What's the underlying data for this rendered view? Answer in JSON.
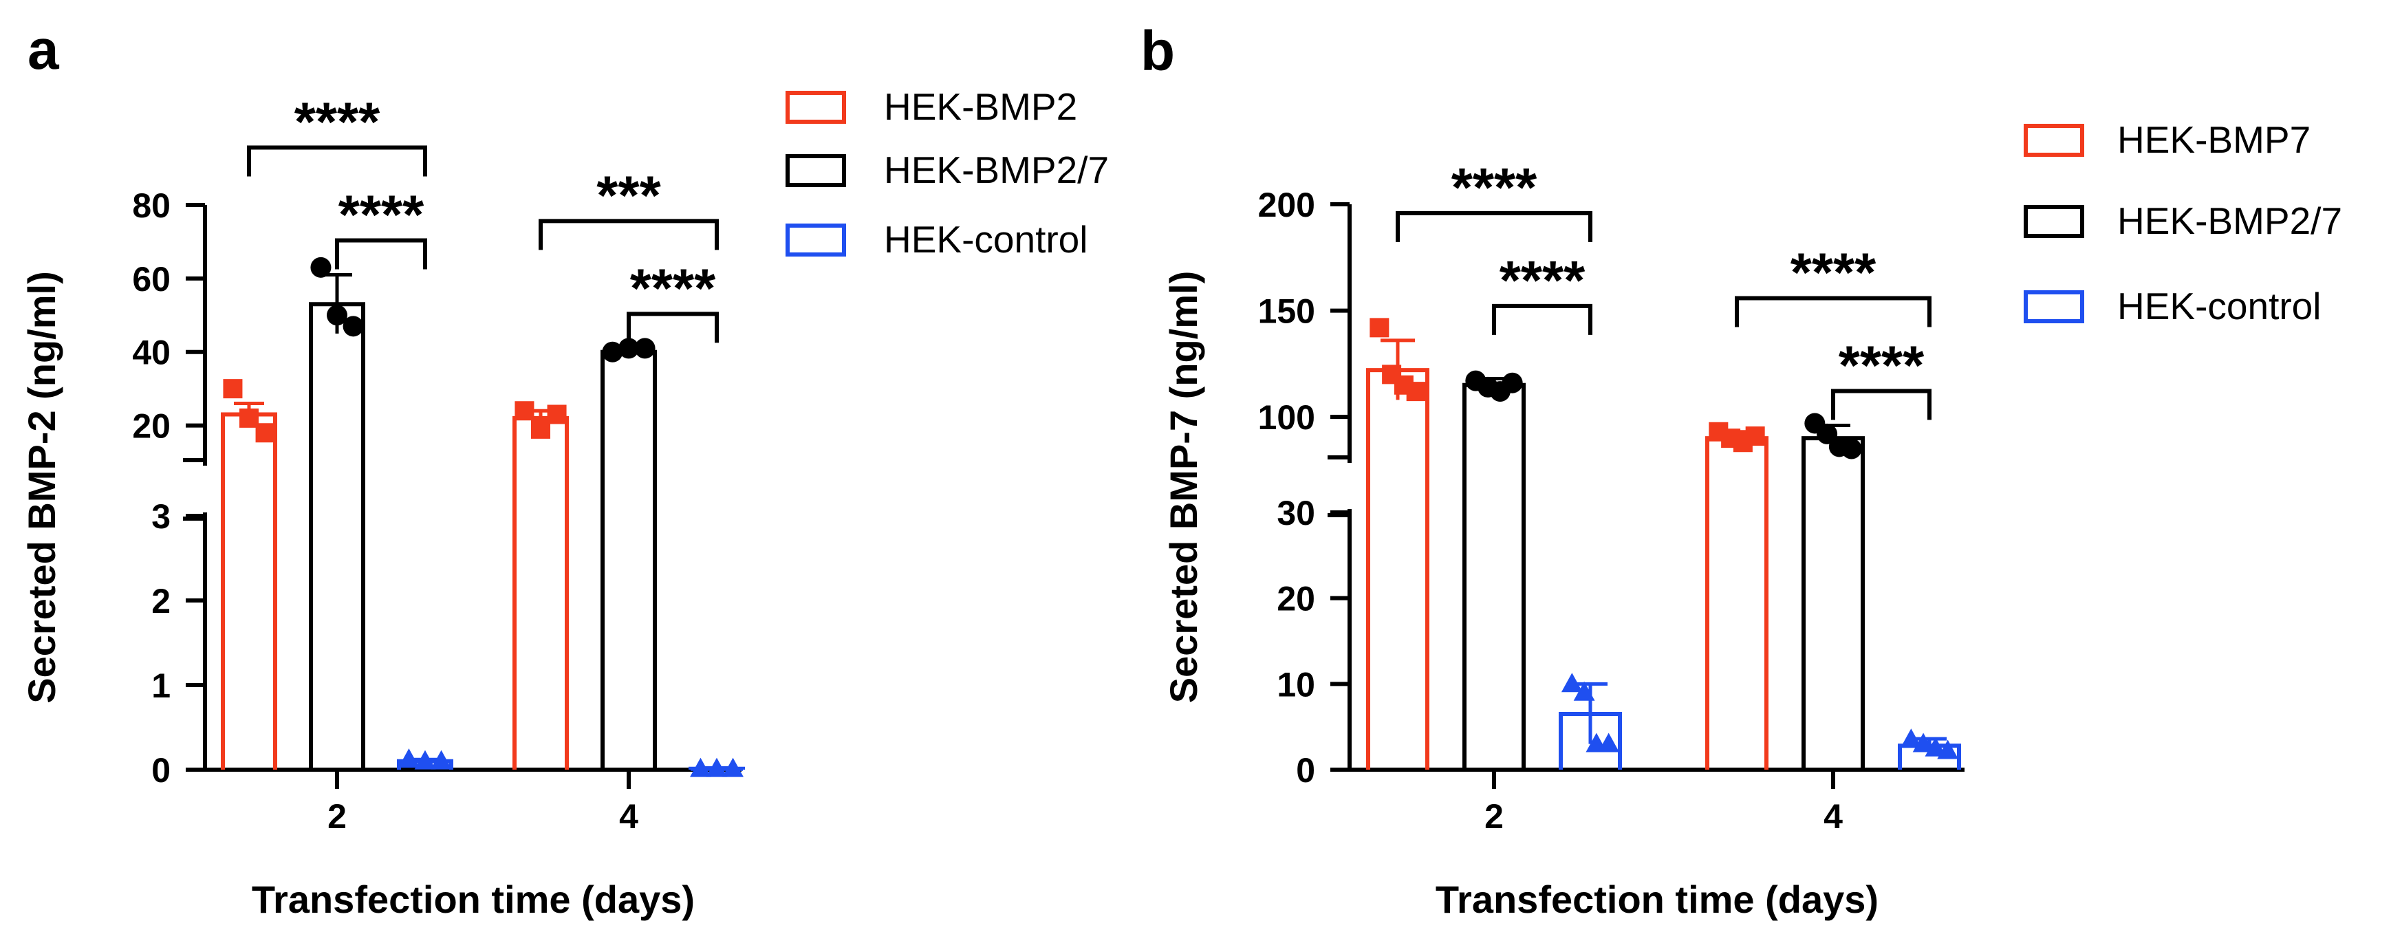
{
  "colors": {
    "HEK-BMP2": "#f23a1c",
    "HEK-BMP7": "#f23a1c",
    "HEK-BMP2/7": "#000000",
    "HEK-control": "#1f4ff0"
  },
  "chart_data": [
    {
      "panel": "a",
      "type": "bar",
      "xlabel": "Transfection time (days)",
      "ylabel": "Secreted BMP-2 (ng/ml)",
      "categories": [
        "2",
        "4"
      ],
      "y_axis_break": {
        "lower": {
          "range": [
            0,
            3
          ],
          "ticks": [
            "0",
            "1",
            "2",
            "3"
          ]
        },
        "upper": {
          "range": [
            10,
            80
          ],
          "ticks": [
            "20",
            "40",
            "60",
            "80"
          ]
        }
      },
      "legend": {
        "placement": "right",
        "entries": [
          "HEK-BMP2",
          "HEK-BMP2/7",
          "HEK-control"
        ]
      },
      "series": [
        {
          "name": "HEK-BMP2",
          "values": [
            23,
            22
          ],
          "error": [
            3,
            2
          ],
          "points": [
            [
              30,
              22,
              18
            ],
            [
              24,
              19,
              23
            ]
          ],
          "marker": "square"
        },
        {
          "name": "HEK-BMP2/7",
          "values": [
            53,
            40
          ],
          "error": [
            8,
            1
          ],
          "points": [
            [
              63,
              50,
              47
            ],
            [
              40,
              41,
              41
            ]
          ],
          "marker": "circle"
        },
        {
          "name": "HEK-control",
          "values": [
            0.1,
            0.01
          ],
          "error": [
            0.02,
            0.01
          ],
          "points": [
            [
              0.12,
              0.1,
              0.1
            ],
            [
              0.01,
              0.01,
              0.01
            ]
          ],
          "marker": "triangle"
        }
      ],
      "annotations": [
        {
          "text": "****",
          "category": "2",
          "from": "HEK-BMP2",
          "to": "HEK-control",
          "level": 1
        },
        {
          "text": "****",
          "category": "2",
          "from": "HEK-BMP2/7",
          "to": "HEK-control",
          "level": 0
        },
        {
          "text": "***",
          "category": "4",
          "from": "HEK-BMP2",
          "to": "HEK-control",
          "level": 1
        },
        {
          "text": "****",
          "category": "4",
          "from": "HEK-BMP2/7",
          "to": "HEK-control",
          "level": 0
        }
      ]
    },
    {
      "panel": "b",
      "type": "bar",
      "xlabel": "Transfection time (days)",
      "ylabel": "Secreted BMP-7 (ng/ml)",
      "categories": [
        "2",
        "4"
      ],
      "y_axis_break": {
        "lower": {
          "range": [
            0,
            30
          ],
          "ticks": [
            "0",
            "10",
            "20",
            "30"
          ]
        },
        "upper": {
          "range": [
            80,
            200
          ],
          "ticks": [
            "100",
            "150",
            "200"
          ]
        }
      },
      "legend": {
        "placement": "right",
        "entries": [
          "HEK-BMP7",
          "HEK-BMP2/7",
          "HEK-control"
        ]
      },
      "series": [
        {
          "name": "HEK-BMP7",
          "values": [
            122,
            90
          ],
          "error": [
            14,
            3
          ],
          "points": [
            [
              142,
              120,
              115,
              112
            ],
            [
              93,
              90,
              88,
              91
            ]
          ],
          "marker": "square"
        },
        {
          "name": "HEK-BMP2/7",
          "values": [
            115,
            90
          ],
          "error": [
            3,
            6
          ],
          "points": [
            [
              117,
              114,
              112,
              116
            ],
            [
              97,
              92,
              86,
              85
            ]
          ],
          "marker": "circle"
        },
        {
          "name": "HEK-control",
          "values": [
            6.5,
            2.8
          ],
          "error": [
            3.5,
            0.8
          ],
          "points": [
            [
              10,
              9,
              3,
              3
            ],
            [
              3.5,
              3,
              2.5,
              2.2
            ]
          ],
          "marker": "triangle"
        }
      ],
      "annotations": [
        {
          "text": "****",
          "category": "2",
          "from": "HEK-BMP7",
          "to": "HEK-control",
          "level": 1
        },
        {
          "text": "****",
          "category": "2",
          "from": "HEK-BMP2/7",
          "to": "HEK-control",
          "level": 0
        },
        {
          "text": "****",
          "category": "4",
          "from": "HEK-BMP7",
          "to": "HEK-control",
          "level": 1
        },
        {
          "text": "****",
          "category": "4",
          "from": "HEK-BMP2/7",
          "to": "HEK-control",
          "level": 0
        }
      ]
    }
  ]
}
